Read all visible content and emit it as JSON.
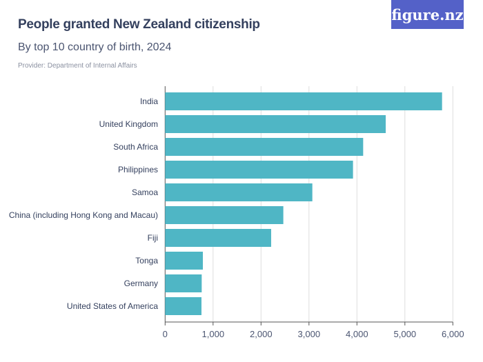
{
  "header": {
    "title": "People granted New Zealand citizenship",
    "subtitle": "By top 10 country of birth, 2024",
    "provider": "Provider: Department of Internal Affairs",
    "logo": "figure.nz"
  },
  "colors": {
    "bar": "#4fb6c5",
    "logo": "#5461c8",
    "grid": "#dddddd"
  },
  "chart_data": {
    "type": "bar",
    "orientation": "horizontal",
    "title": "People granted New Zealand citizenship",
    "subtitle": "By top 10 country of birth, 2024",
    "categories": [
      "India",
      "United Kingdom",
      "South Africa",
      "Philippines",
      "Samoa",
      "China (including Hong Kong and Macau)",
      "Fiji",
      "Tonga",
      "Germany",
      "United States of America"
    ],
    "values": [
      5775,
      4600,
      4130,
      3918,
      3070,
      2465,
      2211,
      787,
      763,
      758
    ],
    "xlim": [
      0,
      6000
    ],
    "xticks": [
      0,
      1000,
      2000,
      3000,
      4000,
      5000,
      6000
    ],
    "xtick_labels": [
      "0",
      "1,000",
      "2,000",
      "3,000",
      "4,000",
      "5,000",
      "6,000"
    ],
    "grid": true
  }
}
